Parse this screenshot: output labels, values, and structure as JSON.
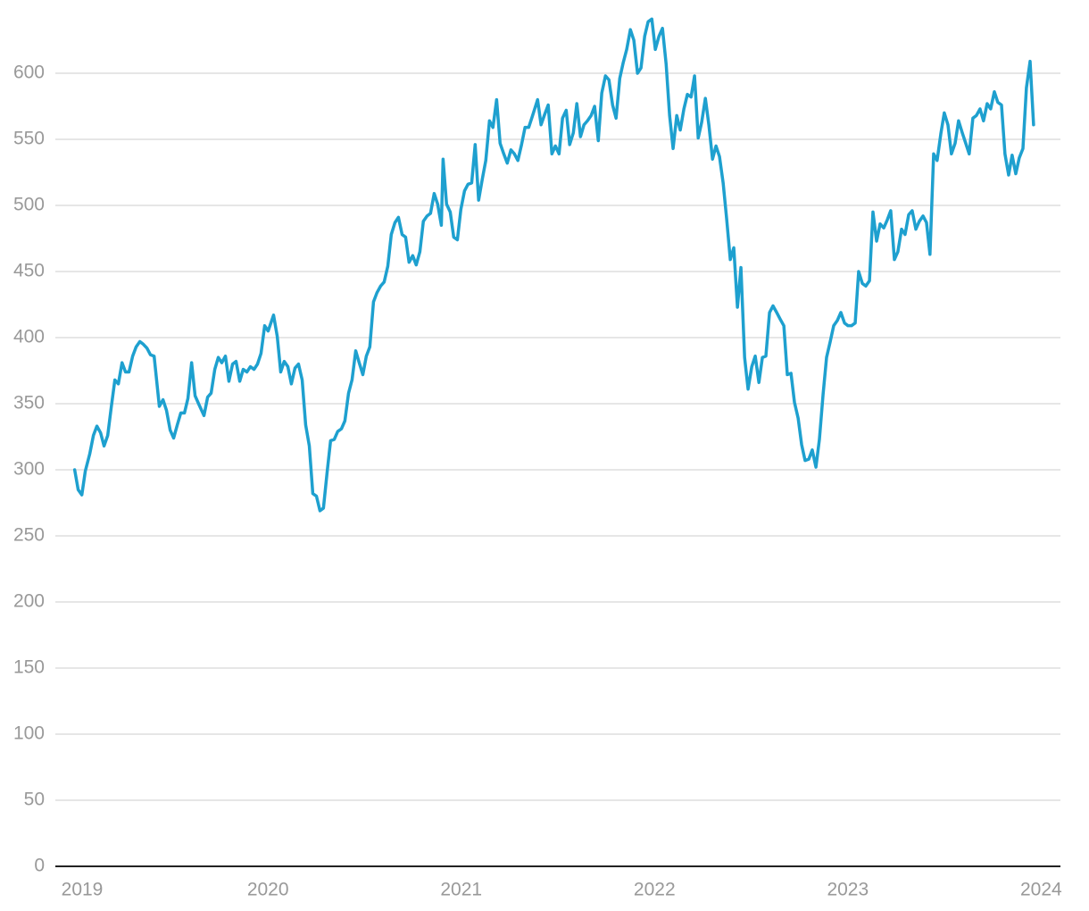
{
  "chart_data": {
    "type": "line",
    "color": "#1ea0cf",
    "grid": true,
    "xlim": [
      2018.9,
      2024.1
    ],
    "xticks": [
      2019,
      2020,
      2021,
      2022,
      2023,
      2024
    ],
    "ylim": [
      0,
      650
    ],
    "yticks": [
      0,
      50,
      100,
      150,
      200,
      250,
      300,
      350,
      400,
      450,
      500,
      550,
      600
    ],
    "x": [
      2019.0,
      2019.018,
      2019.037,
      2019.055,
      2019.078,
      2019.097,
      2019.115,
      2019.134,
      2019.152,
      2019.171,
      2019.189,
      2019.208,
      2019.226,
      2019.245,
      2019.263,
      2019.281,
      2019.3,
      2019.318,
      2019.337,
      2019.355,
      2019.374,
      2019.392,
      2019.411,
      2019.438,
      2019.457,
      2019.475,
      2019.494,
      2019.512,
      2019.531,
      2019.549,
      2019.568,
      2019.586,
      2019.605,
      2019.623,
      2019.641,
      2019.669,
      2019.688,
      2019.706,
      2019.725,
      2019.743,
      2019.761,
      2019.78,
      2019.798,
      2019.817,
      2019.835,
      2019.854,
      2019.872,
      2019.891,
      2019.909,
      2019.928,
      2019.946,
      2019.964,
      2019.983,
      2020.001,
      2020.029,
      2020.048,
      2020.066,
      2020.084,
      2020.103,
      2020.121,
      2020.14,
      2020.158,
      2020.177,
      2020.195,
      2020.214,
      2020.232,
      2020.251,
      2020.269,
      2020.287,
      2020.306,
      2020.324,
      2020.343,
      2020.361,
      2020.38,
      2020.398,
      2020.417,
      2020.435,
      2020.454,
      2020.472,
      2020.491,
      2020.509,
      2020.527,
      2020.546,
      2020.564,
      2020.583,
      2020.601,
      2020.62,
      2020.638,
      2020.657,
      2020.675,
      2020.694,
      2020.712,
      2020.73,
      2020.749,
      2020.767,
      2020.786,
      2020.804,
      2020.823,
      2020.841,
      2020.86,
      2020.878,
      2020.897,
      2020.906,
      2020.924,
      2020.943,
      2020.961,
      2020.98,
      2020.998,
      2021.017,
      2021.035,
      2021.054,
      2021.072,
      2021.09,
      2021.109,
      2021.127,
      2021.146,
      2021.164,
      2021.183,
      2021.201,
      2021.22,
      2021.238,
      2021.257,
      2021.275,
      2021.293,
      2021.312,
      2021.33,
      2021.349,
      2021.367,
      2021.395,
      2021.413,
      2021.432,
      2021.45,
      2021.469,
      2021.487,
      2021.506,
      2021.524,
      2021.543,
      2021.561,
      2021.58,
      2021.598,
      2021.617,
      2021.635,
      2021.653,
      2021.672,
      2021.69,
      2021.709,
      2021.727,
      2021.746,
      2021.764,
      2021.783,
      2021.801,
      2021.82,
      2021.838,
      2021.856,
      2021.875,
      2021.893,
      2021.912,
      2021.93,
      2021.949,
      2021.967,
      2021.986,
      2022.004,
      2022.023,
      2022.041,
      2022.06,
      2022.078,
      2022.096,
      2022.115,
      2022.133,
      2022.152,
      2022.17,
      2022.189,
      2022.207,
      2022.226,
      2022.244,
      2022.263,
      2022.281,
      2022.3,
      2022.318,
      2022.336,
      2022.355,
      2022.373,
      2022.392,
      2022.41,
      2022.429,
      2022.447,
      2022.466,
      2022.484,
      2022.503,
      2022.521,
      2022.54,
      2022.558,
      2022.576,
      2022.595,
      2022.613,
      2022.632,
      2022.65,
      2022.669,
      2022.687,
      2022.706,
      2022.724,
      2022.743,
      2022.761,
      2022.779,
      2022.798,
      2022.816,
      2022.835,
      2022.853,
      2022.872,
      2022.89,
      2022.909,
      2022.927,
      2022.946,
      2022.964,
      2022.983,
      2023.001,
      2023.019,
      2023.038,
      2023.056,
      2023.075,
      2023.093,
      2023.112,
      2023.13,
      2023.149,
      2023.167,
      2023.186,
      2023.204,
      2023.222,
      2023.241,
      2023.259,
      2023.278,
      2023.296,
      2023.315,
      2023.333,
      2023.352,
      2023.37,
      2023.389,
      2023.407,
      2023.425,
      2023.444,
      2023.462,
      2023.481,
      2023.499,
      2023.518,
      2023.536,
      2023.555,
      2023.573,
      2023.592,
      2023.61,
      2023.628,
      2023.647,
      2023.665,
      2023.684,
      2023.702,
      2023.721,
      2023.739,
      2023.758,
      2023.776,
      2023.795,
      2023.813,
      2023.832,
      2023.85,
      2023.869,
      2023.887,
      2023.906,
      2023.924,
      2023.943,
      2023.961
    ],
    "values": [
      300,
      285,
      281,
      299,
      312,
      326,
      333,
      328,
      318,
      326,
      347,
      368,
      365,
      381,
      374,
      374,
      386,
      393,
      397,
      395,
      392,
      387,
      386,
      348,
      353,
      345,
      330,
      324,
      334,
      343,
      343,
      354,
      381,
      356,
      350,
      341,
      355,
      358,
      376,
      385,
      381,
      386,
      367,
      380,
      382,
      367,
      376,
      374,
      378,
      376,
      380,
      388,
      409,
      405,
      417,
      401,
      374,
      382,
      378,
      365,
      377,
      380,
      368,
      334,
      318,
      282,
      280,
      269,
      271,
      298,
      322,
      323,
      329,
      331,
      337,
      358,
      368,
      390,
      381,
      372,
      386,
      393,
      427,
      434,
      439,
      442,
      454,
      478,
      487,
      491,
      478,
      476,
      457,
      462,
      455,
      465,
      488,
      492,
      494,
      509,
      501,
      485,
      535,
      501,
      495,
      476,
      474,
      497,
      511,
      516,
      517,
      546,
      504,
      520,
      534,
      564,
      559,
      580,
      547,
      539,
      532,
      542,
      539,
      534,
      546,
      559,
      559,
      567,
      580,
      561,
      569,
      576,
      539,
      545,
      539,
      566,
      572,
      546,
      555,
      577,
      552,
      561,
      564,
      568,
      575,
      549,
      585,
      598,
      595,
      576,
      566,
      596,
      608,
      618,
      633,
      625,
      600,
      604,
      628,
      639,
      641,
      618,
      628,
      634,
      607,
      568,
      543,
      568,
      557,
      573,
      584,
      582,
      598,
      551,
      563,
      581,
      561,
      535,
      545,
      537,
      517,
      490,
      459,
      468,
      423,
      453,
      385,
      361,
      378,
      386,
      366,
      385,
      386,
      419,
      424,
      419,
      414,
      409,
      372,
      373,
      351,
      339,
      319,
      307,
      308,
      315,
      302,
      323,
      357,
      385,
      397,
      409,
      413,
      419,
      411,
      409,
      409,
      411,
      450,
      441,
      439,
      443,
      495,
      473,
      486,
      483,
      489,
      496,
      459,
      465,
      482,
      478,
      493,
      496,
      482,
      488,
      492,
      487,
      463,
      539,
      534,
      554,
      570,
      561,
      539,
      547,
      564,
      555,
      547,
      539,
      566,
      568,
      573,
      564,
      577,
      573,
      586,
      578,
      576,
      539,
      523,
      538,
      524,
      536,
      543,
      589,
      609,
      561
    ]
  }
}
